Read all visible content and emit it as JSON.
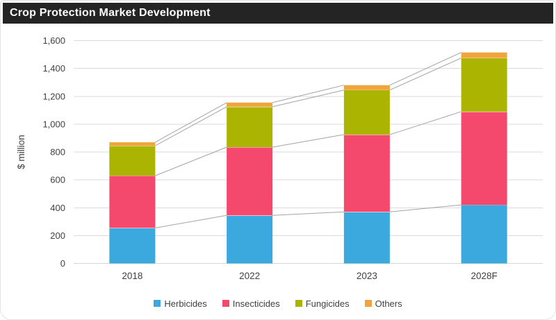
{
  "title": "Crop Protection Market Development",
  "colors": {
    "title_bar_bg": "#242424",
    "title_text": "#FFFFFF",
    "axis_text": "#404040",
    "gridline": "#DBDBDB",
    "baseline": "#D6D6D6",
    "connector_line": "#A3A3A3",
    "card_border": "#E2E2E2"
  },
  "chart_data": {
    "type": "bar",
    "stacked": true,
    "title": "Crop Protection Market Development",
    "xlabel": "",
    "ylabel": "$ million",
    "categories": [
      "2018",
      "2022",
      "2023",
      "2028F"
    ],
    "series": [
      {
        "name": "Herbicides",
        "color": "#3BA9DE",
        "values": [
          255,
          345,
          370,
          420
        ]
      },
      {
        "name": "Insecticides",
        "color": "#F4486C",
        "values": [
          375,
          490,
          555,
          670
        ]
      },
      {
        "name": "Fungicides",
        "color": "#ABB400",
        "values": [
          215,
          290,
          320,
          385
        ]
      },
      {
        "name": "Others",
        "color": "#F0A43C",
        "values": [
          25,
          30,
          35,
          40
        ]
      }
    ],
    "totals": [
      870,
      1155,
      1280,
      1515
    ],
    "ylim": [
      0,
      1600
    ],
    "ytick_step": 200,
    "ytick_labels": [
      "0",
      "200",
      "400",
      "600",
      "800",
      "1,000",
      "1,200",
      "1,400",
      "1,600"
    ],
    "grid": true,
    "connector_lines": true,
    "legend_position": "bottom"
  }
}
